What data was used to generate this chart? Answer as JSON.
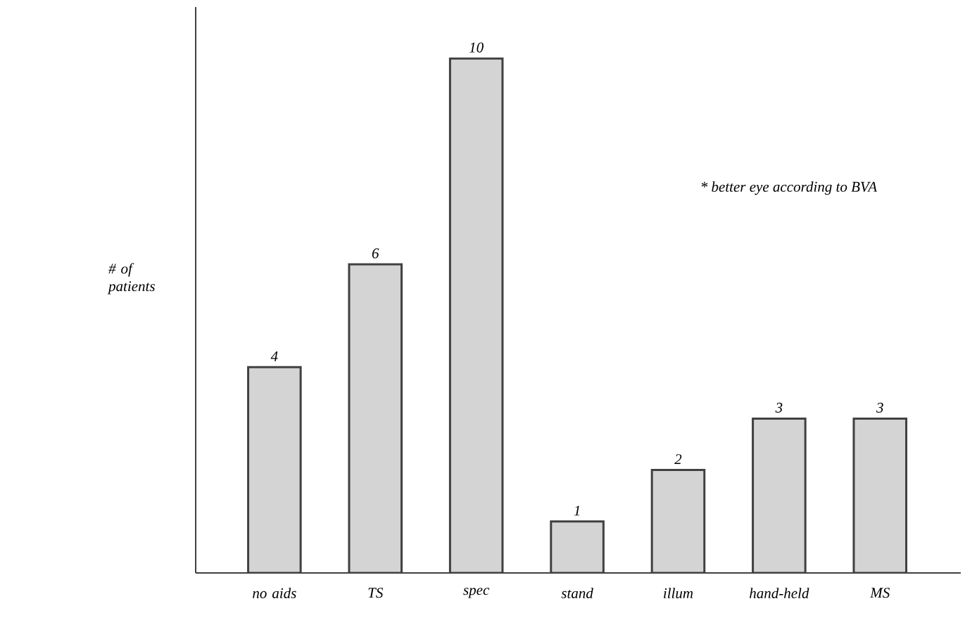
{
  "chart_data": {
    "type": "bar",
    "categories": [
      "no aids",
      "TS",
      "spec",
      "stand",
      "illum",
      "hand-held",
      "MS"
    ],
    "values": [
      4,
      6,
      10,
      1,
      2,
      3,
      3
    ],
    "color": "#d4d4d4",
    "ylabel": "# of patients",
    "ylim": [
      0,
      11
    ],
    "data_labels": true,
    "annotations": [
      "* better eye according to BVA"
    ]
  }
}
